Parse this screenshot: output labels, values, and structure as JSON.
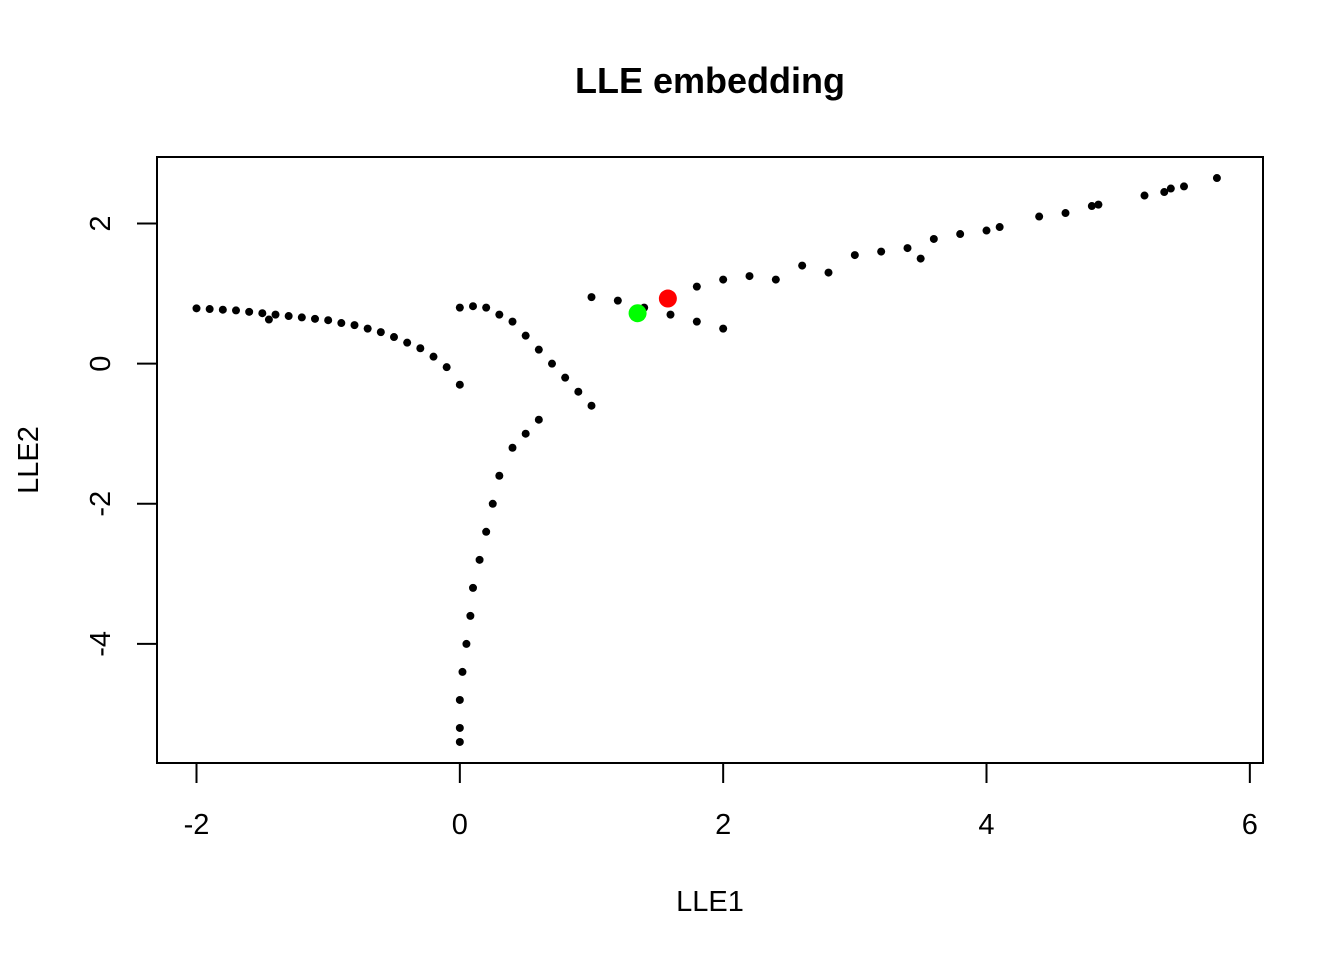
{
  "chart_data": {
    "type": "scatter",
    "title": "LLE embedding",
    "xlabel": "LLE1",
    "ylabel": "LLE2",
    "xlim": [
      -2.3,
      6.1
    ],
    "ylim": [
      -5.7,
      2.95
    ],
    "x_ticks": [
      -2,
      0,
      2,
      4,
      6
    ],
    "y_ticks": [
      -4,
      -2,
      0,
      2
    ],
    "x_tick_labels": [
      "-2",
      "0",
      "2",
      "4",
      "6"
    ],
    "y_tick_labels": [
      "-4",
      "-2",
      "0",
      "2"
    ],
    "grid": false,
    "legend": "none",
    "point_color": "#000000",
    "series": [
      {
        "color": "#000000",
        "points": [
          [
            -2.0,
            0.79
          ],
          [
            -1.9,
            0.78
          ],
          [
            -1.8,
            0.77
          ],
          [
            -1.7,
            0.76
          ],
          [
            -1.6,
            0.74
          ],
          [
            -1.5,
            0.72
          ],
          [
            -1.45,
            0.63
          ],
          [
            -1.4,
            0.7
          ],
          [
            -1.3,
            0.68
          ],
          [
            -1.2,
            0.66
          ],
          [
            -1.1,
            0.64
          ],
          [
            -1.0,
            0.62
          ],
          [
            -0.9,
            0.58
          ],
          [
            -0.8,
            0.55
          ],
          [
            -0.7,
            0.5
          ],
          [
            -0.6,
            0.45
          ],
          [
            -0.5,
            0.38
          ],
          [
            -0.4,
            0.3
          ],
          [
            -0.3,
            0.22
          ],
          [
            -0.2,
            0.1
          ],
          [
            -0.1,
            -0.05
          ],
          [
            0.0,
            -0.3
          ],
          [
            0.0,
            0.8
          ],
          [
            0.1,
            0.82
          ],
          [
            0.2,
            0.8
          ],
          [
            0.3,
            0.7
          ],
          [
            0.4,
            0.6
          ],
          [
            0.5,
            0.4
          ],
          [
            0.6,
            0.2
          ],
          [
            0.7,
            0.0
          ],
          [
            0.8,
            -0.2
          ],
          [
            0.9,
            -0.4
          ],
          [
            1.0,
            -0.6
          ],
          [
            0.6,
            -0.8
          ],
          [
            0.5,
            -1.0
          ],
          [
            0.4,
            -1.2
          ],
          [
            0.3,
            -1.6
          ],
          [
            0.25,
            -2.0
          ],
          [
            0.2,
            -2.4
          ],
          [
            0.15,
            -2.8
          ],
          [
            0.1,
            -3.2
          ],
          [
            0.08,
            -3.6
          ],
          [
            0.05,
            -4.0
          ],
          [
            0.02,
            -4.4
          ],
          [
            0.0,
            -4.8
          ],
          [
            0.0,
            -5.2
          ],
          [
            0.0,
            -5.4
          ],
          [
            1.0,
            0.95
          ],
          [
            1.2,
            0.9
          ],
          [
            1.4,
            0.8
          ],
          [
            1.6,
            0.7
          ],
          [
            1.8,
            0.6
          ],
          [
            2.0,
            0.5
          ],
          [
            1.8,
            1.1
          ],
          [
            2.0,
            1.2
          ],
          [
            2.2,
            1.25
          ],
          [
            2.4,
            1.2
          ],
          [
            2.6,
            1.4
          ],
          [
            2.8,
            1.3
          ],
          [
            3.0,
            1.55
          ],
          [
            3.2,
            1.6
          ],
          [
            3.4,
            1.65
          ],
          [
            3.5,
            1.5
          ],
          [
            3.6,
            1.78
          ],
          [
            3.8,
            1.85
          ],
          [
            4.0,
            1.9
          ],
          [
            4.1,
            1.95
          ],
          [
            4.4,
            2.1
          ],
          [
            4.6,
            2.15
          ],
          [
            4.8,
            2.25
          ],
          [
            4.85,
            2.27
          ],
          [
            5.2,
            2.4
          ],
          [
            5.35,
            2.45
          ],
          [
            5.4,
            2.5
          ],
          [
            5.5,
            2.53
          ],
          [
            5.75,
            2.65
          ]
        ]
      },
      {
        "color": "#00ff00",
        "points": [
          [
            1.35,
            0.72
          ]
        ]
      },
      {
        "color": "#ff0000",
        "points": [
          [
            1.58,
            0.93
          ]
        ]
      }
    ]
  }
}
